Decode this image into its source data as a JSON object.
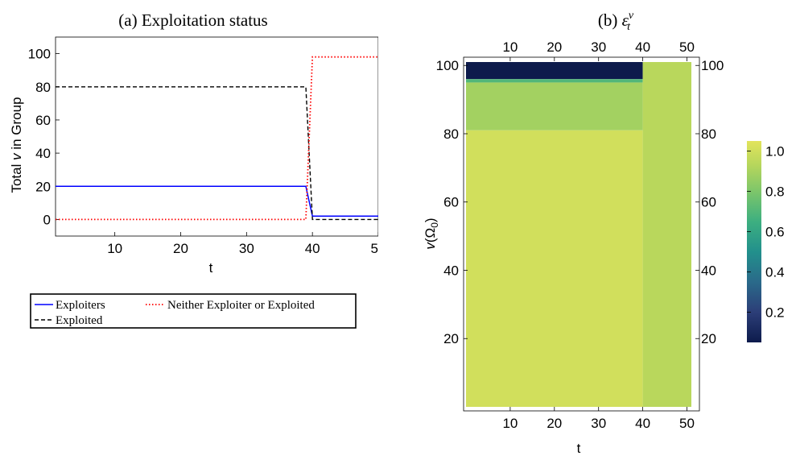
{
  "chart_data": [
    {
      "type": "line",
      "title": "(a) Exploitation status",
      "xlabel": "t",
      "ylabel_prefix": "Total ",
      "ylabel_var": "v",
      "ylabel_suffix": " in Group",
      "xlim": [
        1,
        50
      ],
      "ylim": [
        -10,
        110
      ],
      "xticks": [
        10,
        20,
        30,
        40,
        50
      ],
      "yticks": [
        0,
        20,
        40,
        60,
        80,
        100
      ],
      "series": [
        {
          "name": "Exploiters",
          "color": "#0000ff",
          "style": "solid",
          "x": [
            1,
            39,
            40,
            50
          ],
          "y": [
            20,
            20,
            2,
            2
          ]
        },
        {
          "name": "Exploited",
          "color": "#000000",
          "style": "dashed",
          "x": [
            1,
            39,
            40,
            50
          ],
          "y": [
            80,
            80,
            0,
            0
          ]
        },
        {
          "name": "Neither Exploiter or Exploited",
          "color": "#ff0000",
          "style": "dotted",
          "x": [
            1,
            39,
            40,
            50
          ],
          "y": [
            0,
            0,
            98,
            98
          ]
        }
      ],
      "legend_position": "bottom"
    },
    {
      "type": "heatmap",
      "title_prefix": "(b) ",
      "title_symbol": "ε",
      "title_sup": "ν",
      "title_sub": "t",
      "xlabel": "t",
      "ylabel_var": "v",
      "ylabel_arg": "(Ω",
      "ylabel_sub": "0",
      "ylabel_close": ")",
      "xlim": [
        0,
        51
      ],
      "ylim": [
        0,
        101
      ],
      "xticks": [
        10,
        20,
        30,
        40,
        50
      ],
      "yticks": [
        20,
        40,
        60,
        80,
        100
      ],
      "colorbar_ticks": [
        "1.0",
        "0.8",
        "0.6",
        "0.4",
        "0.2"
      ],
      "colorbar_range": [
        0.05,
        1.05
      ],
      "regions": [
        {
          "t": [
            0,
            40
          ],
          "v": [
            96,
            101
          ],
          "value": 0.05
        },
        {
          "t": [
            0,
            40
          ],
          "v": [
            95,
            96
          ],
          "value": 0.7
        },
        {
          "t": [
            0,
            40
          ],
          "v": [
            81,
            95
          ],
          "value": 0.88
        },
        {
          "t": [
            0,
            40
          ],
          "v": [
            0,
            81
          ],
          "value": 1.0
        },
        {
          "t": [
            40,
            51
          ],
          "v": [
            0,
            101
          ],
          "value": 0.93
        }
      ]
    }
  ]
}
